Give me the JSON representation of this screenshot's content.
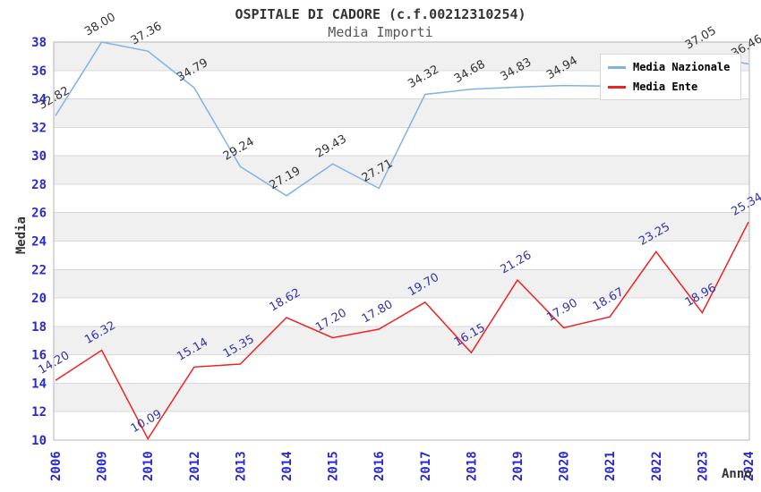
{
  "header": {
    "title": "OSPITALE DI CADORE (c.f.00212310254)",
    "subtitle": "Media Importi"
  },
  "colors": {
    "title": "#333333",
    "subtitle": "#555555",
    "axis_tick": "#2929cc",
    "axis_title": "#333333",
    "band": "#f0f0f0",
    "grid": "#d9d9d9",
    "border": "#b5b5b5",
    "legend_bg": "#ffffff",
    "legend_border": "#d5d5d5",
    "nazionale_line": "#7fb2e5",
    "ente_line": "#ee2222"
  },
  "chart_data": {
    "type": "line",
    "title": "OSPITALE DI CADORE (c.f.00212310254)",
    "subtitle": "Media Importi",
    "xlabel": "Anno",
    "ylabel": "Media",
    "ylim": [
      10,
      38
    ],
    "ytick_step": 2,
    "grid": true,
    "alternating_bands": true,
    "legend_position": "top-right",
    "categories": [
      "2006",
      "2009",
      "2010",
      "2012",
      "2013",
      "2014",
      "2015",
      "2016",
      "2017",
      "2018",
      "2019",
      "2020",
      "2021",
      "2022",
      "2023",
      "2024"
    ],
    "series": [
      {
        "name": "Media Nazionale",
        "color": "#7fb2e5",
        "label_color": "#333333",
        "values": [
          32.82,
          38.0,
          37.36,
          34.79,
          29.24,
          27.19,
          29.43,
          27.71,
          34.32,
          34.68,
          34.83,
          34.94,
          34.9,
          35.8,
          37.05,
          36.46
        ],
        "labels": [
          "32.82",
          "38.00",
          "37.36",
          "34.79",
          "29.24",
          "27.19",
          "29.43",
          "27.71",
          "34.32",
          "34.68",
          "34.83",
          "34.94",
          "",
          "",
          "37.05",
          "36.46"
        ]
      },
      {
        "name": "Media Ente",
        "color": "#ee2222",
        "label_color": "#3333aa",
        "values": [
          14.2,
          16.32,
          10.09,
          15.14,
          15.35,
          18.62,
          17.2,
          17.8,
          19.7,
          16.15,
          21.26,
          17.9,
          18.67,
          23.25,
          18.96,
          25.34
        ],
        "labels": [
          "14.20",
          "16.32",
          "10.09",
          "15.14",
          "15.35",
          "18.62",
          "17.20",
          "17.80",
          "19.70",
          "16.15",
          "21.26",
          "17.90",
          "18.67",
          "23.25",
          "18.96",
          "25.34"
        ]
      }
    ]
  }
}
